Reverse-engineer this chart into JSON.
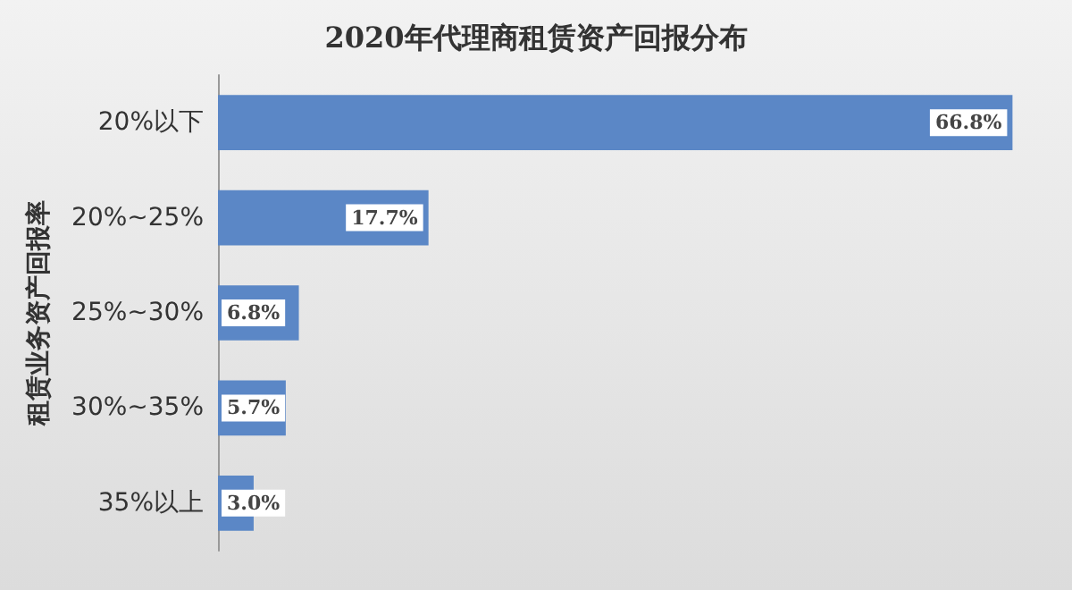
{
  "chart_data": {
    "type": "bar",
    "orientation": "horizontal",
    "title": "2020年代理商租赁资产回报分布",
    "ylabel": "租赁业务资产回报率",
    "categories": [
      "20%以下",
      "20%~25%",
      "25%~30%",
      "30%~35%",
      "35%以上"
    ],
    "values": [
      66.8,
      17.7,
      6.8,
      5.7,
      3.0
    ],
    "value_labels": [
      "66.8%",
      "17.7%",
      "6.8%",
      "5.7%",
      "3.0%"
    ],
    "color": "#5b87c6",
    "grid": false
  }
}
